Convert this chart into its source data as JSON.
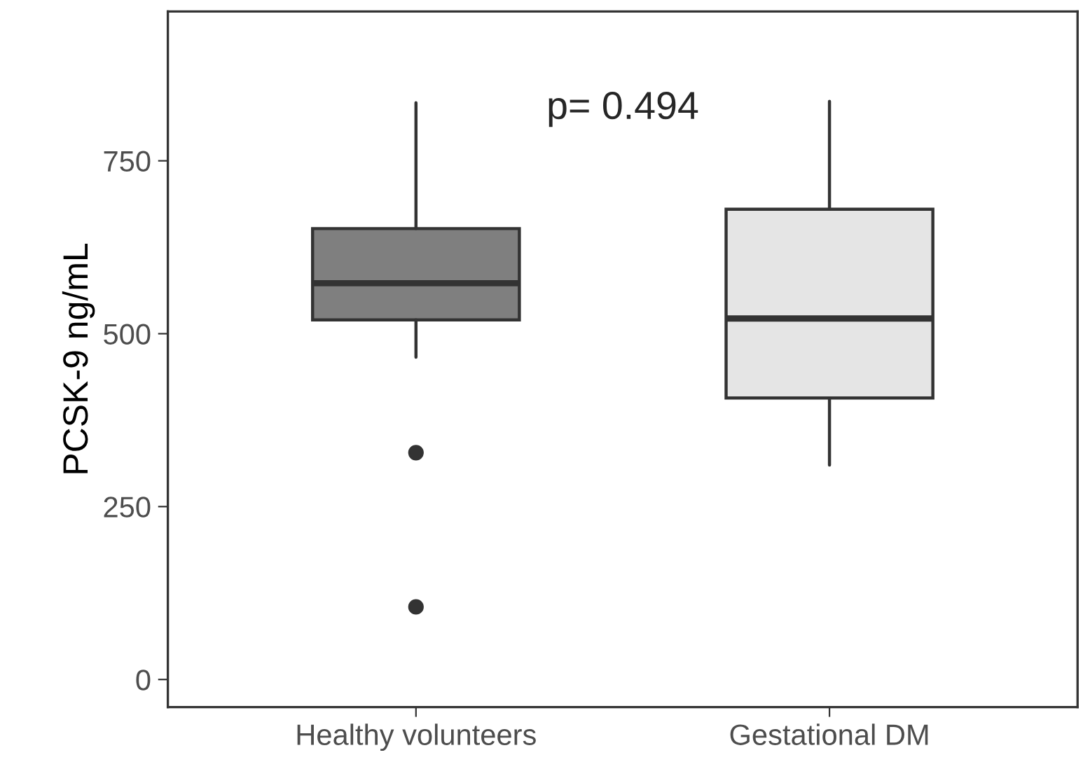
{
  "chart_data": {
    "type": "box",
    "ylabel": "PCSK-9 ng/mL",
    "categories": [
      "Healthy volunteers",
      "Gestational DM"
    ],
    "colors": [
      "#7f7f7f",
      "#e5e5e5"
    ],
    "boxes": [
      {
        "low": 466,
        "q1": 520,
        "median": 573,
        "q3": 652,
        "high": 834,
        "outliers": [
          328,
          105
        ]
      },
      {
        "low": 310,
        "q1": 407,
        "median": 522,
        "q3": 680,
        "high": 836
      }
    ],
    "ylim": [
      -40,
      966
    ],
    "yticks": [
      0,
      250,
      500,
      750
    ],
    "grid": false,
    "legend": false,
    "annotations": [
      "p= 0.494"
    ]
  }
}
